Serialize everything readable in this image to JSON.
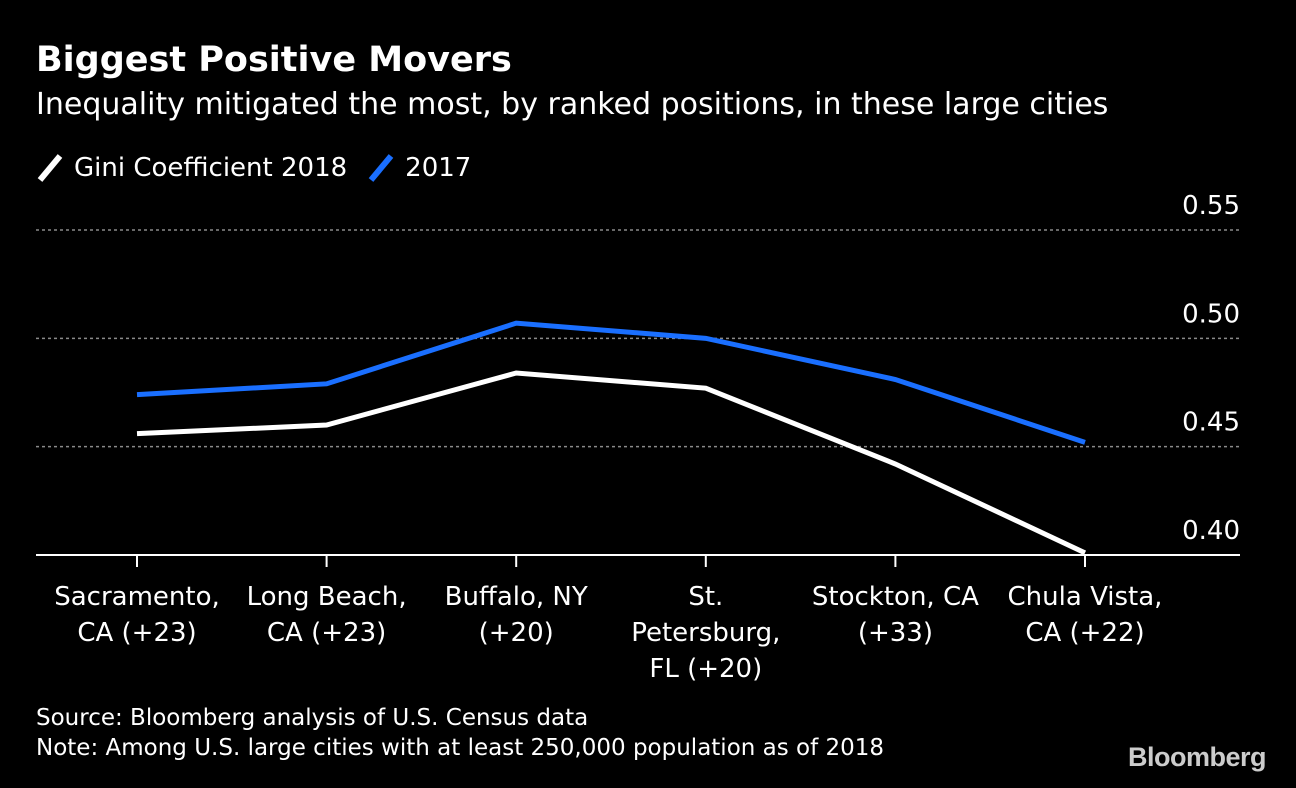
{
  "title": "Biggest Positive Movers",
  "subtitle": "Inequality mitigated the most, by ranked positions, in these large cities",
  "legend": [
    {
      "label": "Gini Coefficient 2018",
      "color": "#ffffff"
    },
    {
      "label": "2017",
      "color": "#1a6fff"
    }
  ],
  "footer": {
    "source": "Source: Bloomberg analysis of U.S. Census data",
    "note": "Note: Among U.S. large cities with at least 250,000 population as of 2018"
  },
  "logo": "Bloomberg",
  "chart_data": {
    "type": "line",
    "categories": [
      [
        "Sacramento,",
        "CA (+23)"
      ],
      [
        "Long Beach,",
        "CA (+23)"
      ],
      [
        "Buffalo, NY",
        "(+20)"
      ],
      [
        "St.",
        "Petersburg,",
        "FL (+20)"
      ],
      [
        "Stockton, CA",
        "(+33)"
      ],
      [
        "Chula Vista,",
        "CA (+22)"
      ]
    ],
    "series": [
      {
        "name": "Gini Coefficient 2018",
        "color": "#ffffff",
        "values": [
          0.456,
          0.46,
          0.484,
          0.477,
          0.442,
          0.401
        ]
      },
      {
        "name": "2017",
        "color": "#1a6fff",
        "values": [
          0.474,
          0.479,
          0.507,
          0.5,
          0.481,
          0.452
        ]
      }
    ],
    "yticks": [
      "0.55",
      "0.50",
      "0.45",
      "0.40"
    ],
    "ylim": [
      0.4,
      0.55
    ],
    "grid": true,
    "legend_position": "top-left"
  }
}
